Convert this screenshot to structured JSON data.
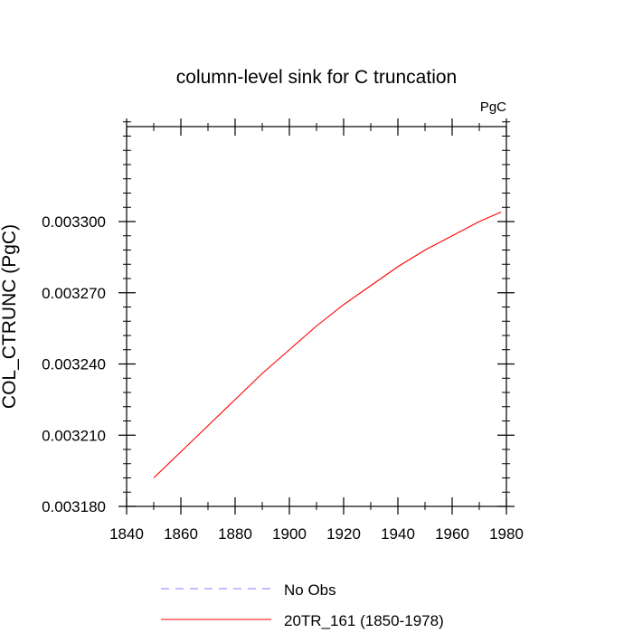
{
  "chart_data": {
    "type": "line",
    "title": "column-level sink for C truncation",
    "units": "PgC",
    "xlabel": "",
    "ylabel": "COL_CTRUNC  (PgC)",
    "xlim": [
      1840,
      1980
    ],
    "ylim": [
      0.00318,
      0.00334
    ],
    "xticks": [
      1840,
      1860,
      1880,
      1900,
      1920,
      1940,
      1960,
      1980
    ],
    "yticks": [
      0.00318,
      0.00321,
      0.00324,
      0.00327,
      0.0033
    ],
    "xtick_labels": [
      "1840",
      "1860",
      "1880",
      "1900",
      "1920",
      "1940",
      "1960",
      "1980"
    ],
    "ytick_labels": [
      "0.003180",
      "0.003210",
      "0.003240",
      "0.003270",
      "0.003300"
    ],
    "grid": false,
    "legend_position": "bottom",
    "series": [
      {
        "name": "No Obs",
        "color": "#8080ff",
        "dash": "dashed",
        "x": [],
        "y": []
      },
      {
        "name": "20TR_161 (1850-1978)",
        "color": "#ff0000",
        "dash": "solid",
        "x": [
          1850,
          1860,
          1870,
          1880,
          1890,
          1900,
          1910,
          1920,
          1930,
          1940,
          1950,
          1960,
          1970,
          1978
        ],
        "y": [
          0.003192,
          0.003203,
          0.003214,
          0.003225,
          0.003236,
          0.003246,
          0.003256,
          0.003265,
          0.003273,
          0.003281,
          0.003288,
          0.003294,
          0.0033,
          0.003304
        ]
      }
    ]
  }
}
